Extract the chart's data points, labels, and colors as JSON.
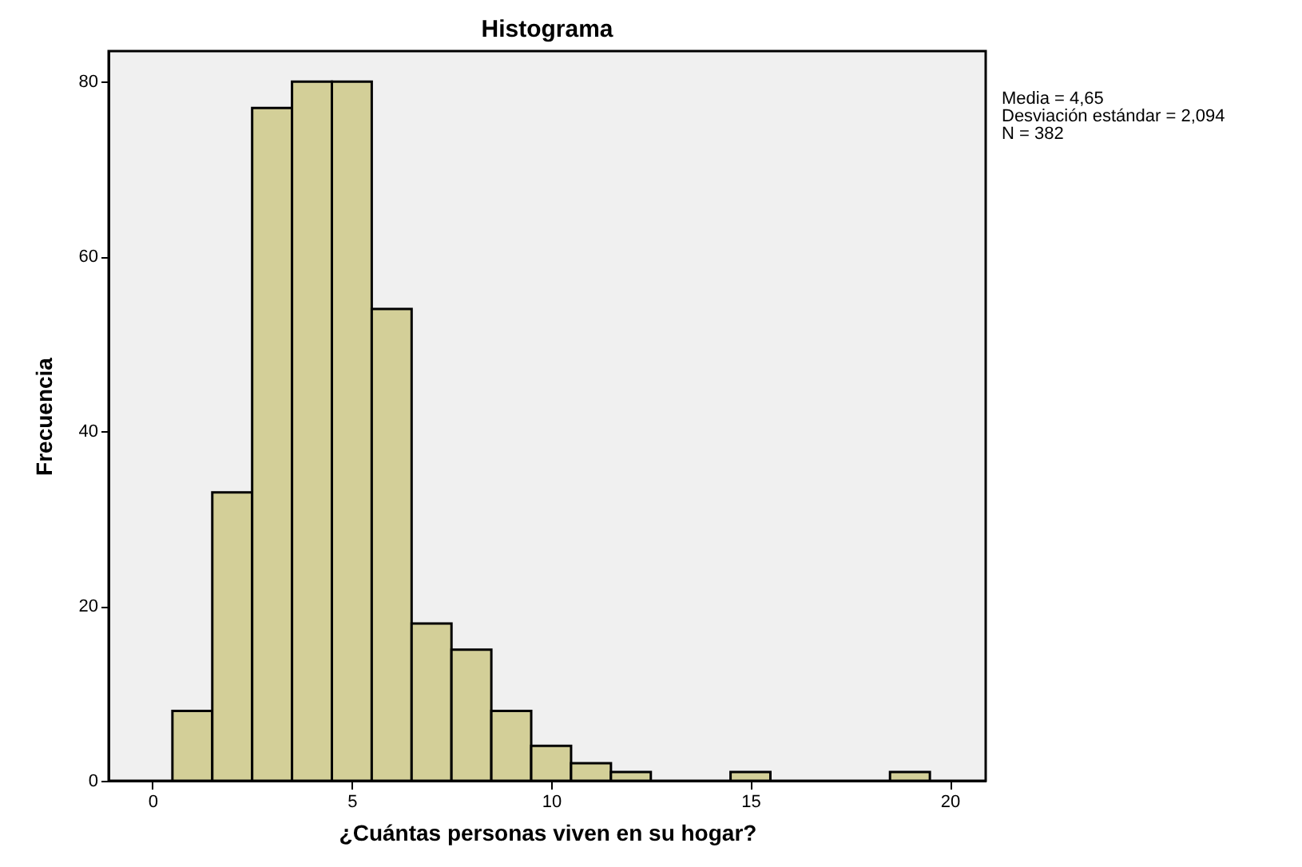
{
  "chart_data": {
    "type": "histogram",
    "title": "Histograma",
    "xlabel": "¿Cuántas personas viven en su hogar?",
    "ylabel": "Frecuencia",
    "bins": [
      0.5,
      1.5,
      2.5,
      3.5,
      4.5,
      5.5,
      6.5,
      7.5,
      8.5,
      9.5,
      10.5,
      11.5,
      12.5,
      13.5,
      14.5,
      15.5,
      16.5,
      17.5,
      18.5,
      19.5
    ],
    "values": [
      8,
      33,
      77,
      80,
      80,
      54,
      18,
      15,
      8,
      4,
      2,
      1,
      0,
      0,
      1,
      0,
      0,
      0,
      1
    ],
    "color": "#d3cf98",
    "xlim": [
      -1.1,
      20.9
    ],
    "xticks": [
      0,
      5,
      10,
      15,
      20
    ],
    "ylim": [
      0,
      83.5
    ],
    "yticks": [
      0,
      20,
      40,
      60,
      80
    ],
    "grid": false,
    "annotations": [
      "Media = 4,65",
      "Desviación estándar = 2,094",
      "N = 382"
    ]
  }
}
